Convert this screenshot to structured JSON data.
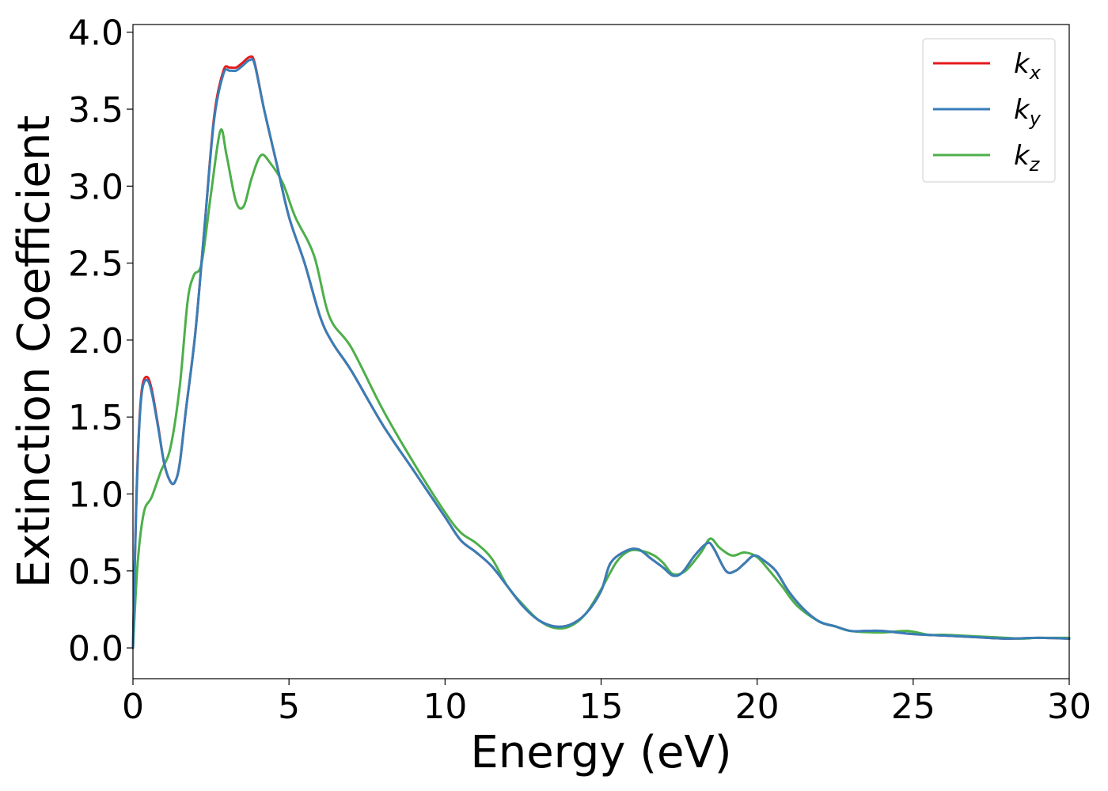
{
  "chart_data": {
    "type": "line",
    "title": "",
    "xlabel": "Energy (eV)",
    "ylabel": "Extinction Coefficient",
    "xlim": [
      0,
      30
    ],
    "ylim": [
      -0.2,
      4.05
    ],
    "xticks": [
      0,
      5,
      10,
      15,
      20,
      25,
      30
    ],
    "xtick_labels": [
      "0",
      "5",
      "10",
      "15",
      "20",
      "25",
      "30"
    ],
    "yticks": [
      0.0,
      0.5,
      1.0,
      1.5,
      2.0,
      2.5,
      3.0,
      3.5,
      4.0
    ],
    "ytick_labels": [
      "0.0",
      "0.5",
      "1.0",
      "1.5",
      "2.0",
      "2.5",
      "3.0",
      "3.5",
      "4.0"
    ],
    "grid": false,
    "legend_position": "top-right",
    "series": [
      {
        "name": "k_x",
        "label_main": "k",
        "label_sub": "x",
        "color": "#e41a1c",
        "x": [
          0,
          0.1,
          0.2,
          0.3,
          0.45,
          0.6,
          0.8,
          1.0,
          1.2,
          1.35,
          1.5,
          1.7,
          2.0,
          2.3,
          2.6,
          2.9,
          3.1,
          3.3,
          3.5,
          3.75,
          3.9,
          4.2,
          4.6,
          5.0,
          5.5,
          6.0,
          6.4,
          7.0,
          8.0,
          9.0,
          10.0,
          10.5,
          11.0,
          11.5,
          12.0,
          12.5,
          13.0,
          13.5,
          14.0,
          14.5,
          15.0,
          15.3,
          15.8,
          16.2,
          16.6,
          17.0,
          17.3,
          17.6,
          18.0,
          18.4,
          18.6,
          19.0,
          19.3,
          19.6,
          19.9,
          20.2,
          20.6,
          21.0,
          21.5,
          22.0,
          22.5,
          23.0,
          23.5,
          24.0,
          25.0,
          26.0,
          27.0,
          28.0,
          29.0,
          30.0
        ],
        "y": [
          0.0,
          0.9,
          1.45,
          1.7,
          1.76,
          1.68,
          1.45,
          1.2,
          1.08,
          1.08,
          1.2,
          1.55,
          2.05,
          2.75,
          3.45,
          3.75,
          3.77,
          3.77,
          3.8,
          3.84,
          3.8,
          3.5,
          3.15,
          2.8,
          2.5,
          2.15,
          1.98,
          1.8,
          1.45,
          1.15,
          0.85,
          0.7,
          0.62,
          0.53,
          0.4,
          0.27,
          0.18,
          0.14,
          0.15,
          0.22,
          0.37,
          0.55,
          0.63,
          0.64,
          0.58,
          0.52,
          0.47,
          0.49,
          0.6,
          0.68,
          0.65,
          0.5,
          0.5,
          0.55,
          0.6,
          0.57,
          0.5,
          0.37,
          0.25,
          0.17,
          0.14,
          0.11,
          0.11,
          0.11,
          0.09,
          0.08,
          0.07,
          0.06,
          0.065,
          0.06
        ]
      },
      {
        "name": "k_y",
        "label_main": "k",
        "label_sub": "y",
        "color": "#377eb8",
        "x": [
          0,
          0.1,
          0.2,
          0.3,
          0.45,
          0.6,
          0.8,
          1.0,
          1.2,
          1.35,
          1.5,
          1.7,
          2.0,
          2.3,
          2.6,
          2.9,
          3.1,
          3.3,
          3.5,
          3.75,
          3.9,
          4.2,
          4.6,
          5.0,
          5.5,
          6.0,
          6.4,
          7.0,
          8.0,
          9.0,
          10.0,
          10.5,
          11.0,
          11.5,
          12.0,
          12.5,
          13.0,
          13.5,
          14.0,
          14.5,
          15.0,
          15.3,
          15.8,
          16.2,
          16.6,
          17.0,
          17.3,
          17.6,
          18.0,
          18.4,
          18.6,
          19.0,
          19.3,
          19.6,
          19.9,
          20.2,
          20.6,
          21.0,
          21.5,
          22.0,
          22.5,
          23.0,
          23.5,
          24.0,
          25.0,
          26.0,
          27.0,
          28.0,
          29.0,
          30.0
        ],
        "y": [
          0.0,
          0.88,
          1.43,
          1.68,
          1.74,
          1.66,
          1.44,
          1.2,
          1.08,
          1.08,
          1.2,
          1.55,
          2.05,
          2.75,
          3.43,
          3.73,
          3.75,
          3.75,
          3.78,
          3.82,
          3.79,
          3.5,
          3.15,
          2.8,
          2.5,
          2.15,
          1.98,
          1.8,
          1.45,
          1.15,
          0.85,
          0.7,
          0.62,
          0.53,
          0.4,
          0.27,
          0.18,
          0.14,
          0.15,
          0.22,
          0.37,
          0.55,
          0.63,
          0.64,
          0.58,
          0.52,
          0.47,
          0.49,
          0.6,
          0.68,
          0.65,
          0.5,
          0.5,
          0.55,
          0.6,
          0.57,
          0.5,
          0.37,
          0.25,
          0.17,
          0.14,
          0.11,
          0.11,
          0.11,
          0.09,
          0.08,
          0.07,
          0.06,
          0.065,
          0.06
        ]
      },
      {
        "name": "k_z",
        "label_main": "k",
        "label_sub": "z",
        "color": "#4daf4a",
        "x": [
          0,
          0.15,
          0.35,
          0.6,
          0.9,
          1.2,
          1.5,
          1.75,
          1.95,
          2.2,
          2.5,
          2.8,
          3.0,
          3.3,
          3.55,
          3.8,
          4.1,
          4.4,
          4.8,
          5.2,
          5.8,
          6.3,
          7.0,
          8.0,
          9.0,
          10.0,
          10.5,
          11.0,
          11.5,
          12.0,
          12.5,
          13.0,
          13.5,
          14.0,
          14.5,
          15.0,
          15.5,
          15.9,
          16.3,
          16.7,
          17.0,
          17.3,
          17.7,
          18.2,
          18.5,
          18.8,
          19.2,
          19.6,
          20.0,
          20.4,
          20.8,
          21.3,
          22.0,
          22.5,
          23.0,
          24.0,
          24.8,
          25.5,
          26.0,
          27.0,
          28.0,
          28.5,
          29.0,
          30.0
        ],
        "y": [
          0.0,
          0.55,
          0.88,
          0.98,
          1.15,
          1.3,
          1.7,
          2.25,
          2.42,
          2.5,
          2.95,
          3.36,
          3.2,
          2.9,
          2.87,
          3.05,
          3.2,
          3.15,
          3.02,
          2.8,
          2.55,
          2.15,
          1.95,
          1.55,
          1.2,
          0.88,
          0.75,
          0.68,
          0.58,
          0.4,
          0.28,
          0.18,
          0.13,
          0.14,
          0.22,
          0.38,
          0.56,
          0.63,
          0.63,
          0.6,
          0.55,
          0.48,
          0.5,
          0.62,
          0.71,
          0.65,
          0.6,
          0.62,
          0.59,
          0.5,
          0.4,
          0.27,
          0.17,
          0.14,
          0.11,
          0.1,
          0.11,
          0.085,
          0.085,
          0.075,
          0.065,
          0.06,
          0.065,
          0.065
        ]
      }
    ]
  }
}
